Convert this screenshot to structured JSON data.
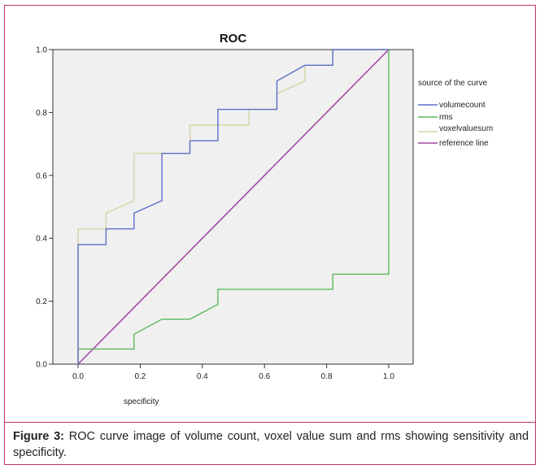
{
  "chart_data": {
    "type": "line",
    "title": "ROC",
    "xlabel": "specificity",
    "ylabel": "",
    "xlim": [
      0,
      1
    ],
    "ylim": [
      0,
      1
    ],
    "x_ticks": [
      "0.0",
      "0.2",
      "0.4",
      "0.6",
      "0.8",
      "1.0"
    ],
    "y_ticks": [
      "0.0",
      "0.2",
      "0.4",
      "0.6",
      "0.8",
      "1.0"
    ],
    "legend_title": "source of the curve",
    "legend_position": "right",
    "series": [
      {
        "name": "volumecount",
        "color": "#5b6fc7",
        "points": [
          [
            0,
            0
          ],
          [
            0,
            0.38
          ],
          [
            0.09,
            0.38
          ],
          [
            0.09,
            0.43
          ],
          [
            0.18,
            0.43
          ],
          [
            0.18,
            0.48
          ],
          [
            0.27,
            0.52
          ],
          [
            0.27,
            0.67
          ],
          [
            0.36,
            0.67
          ],
          [
            0.36,
            0.71
          ],
          [
            0.45,
            0.71
          ],
          [
            0.45,
            0.81
          ],
          [
            0.55,
            0.81
          ],
          [
            0.64,
            0.81
          ],
          [
            0.64,
            0.9
          ],
          [
            0.73,
            0.95
          ],
          [
            0.82,
            0.95
          ],
          [
            0.82,
            1.0
          ],
          [
            1.0,
            1.0
          ]
        ]
      },
      {
        "name": "rms",
        "color": "#5cb85c",
        "points": [
          [
            0,
            0
          ],
          [
            0,
            0.048
          ],
          [
            0.18,
            0.048
          ],
          [
            0.18,
            0.095
          ],
          [
            0.27,
            0.143
          ],
          [
            0.36,
            0.143
          ],
          [
            0.45,
            0.19
          ],
          [
            0.45,
            0.238
          ],
          [
            0.82,
            0.238
          ],
          [
            0.82,
            0.286
          ],
          [
            1.0,
            0.286
          ],
          [
            1.0,
            1.0
          ]
        ]
      },
      {
        "name": "voxelvaluesum",
        "color": "#d8d3a6",
        "points": [
          [
            0,
            0
          ],
          [
            0,
            0.43
          ],
          [
            0.09,
            0.43
          ],
          [
            0.09,
            0.48
          ],
          [
            0.18,
            0.52
          ],
          [
            0.18,
            0.67
          ],
          [
            0.27,
            0.67
          ],
          [
            0.36,
            0.67
          ],
          [
            0.36,
            0.76
          ],
          [
            0.45,
            0.76
          ],
          [
            0.45,
            0.76
          ],
          [
            0.55,
            0.76
          ],
          [
            0.55,
            0.81
          ],
          [
            0.64,
            0.81
          ],
          [
            0.64,
            0.86
          ],
          [
            0.73,
            0.9
          ],
          [
            0.73,
            0.95
          ],
          [
            0.82,
            0.95
          ],
          [
            0.82,
            1.0
          ],
          [
            1.0,
            1.0
          ]
        ]
      },
      {
        "name": "reference line",
        "color": "#a349a4",
        "points": [
          [
            0,
            0
          ],
          [
            1,
            1
          ]
        ]
      }
    ]
  },
  "caption": {
    "label": "Figure 3:",
    "text": " ROC curve image of volume count, voxel value sum and rms showing sensitivity and specificity."
  }
}
